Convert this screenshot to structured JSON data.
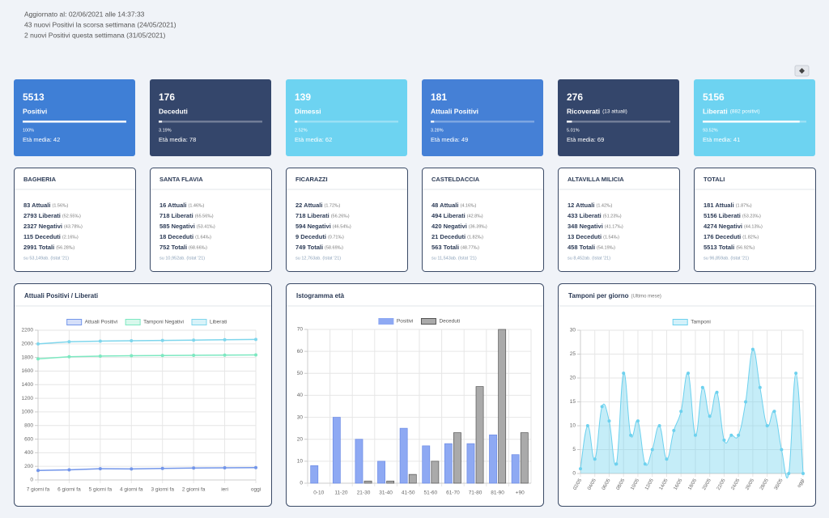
{
  "header": {
    "lines": [
      "Aggiornato al: 02/06/2021 alle 14:37:33",
      "43 nuovi Positivi la scorsa settimana (24/05/2021)",
      "2 nuovi Positivi questa settimana (31/05/2021)"
    ]
  },
  "cards": [
    {
      "value": 5513,
      "label": "Positivi",
      "percent": 100,
      "percent_label": "100%",
      "age": "Età media: 42",
      "color": "#3f7fd6"
    },
    {
      "value": 176,
      "label": "Deceduti",
      "percent": 3.19,
      "percent_label": "3.19%",
      "age": "Età media: 78",
      "color": "#34466b"
    },
    {
      "value": 139,
      "label": "Dimessi",
      "percent": 2.52,
      "percent_label": "2.52%",
      "age": "Età media: 62",
      "color": "#6dd3f1"
    },
    {
      "value": 181,
      "label": "Attuali Positivi",
      "percent": 3.28,
      "percent_label": "3.28%",
      "age": "Età media: 49",
      "color": "#4580d6"
    },
    {
      "value": 276,
      "label": "Ricoverati",
      "note": "(13 attuali)",
      "percent": 5.01,
      "percent_label": "5.01%",
      "age": "Età media: 69",
      "color": "#34466b"
    },
    {
      "value": 5156,
      "label": "Liberati",
      "note": "(882 positivi)",
      "percent": 93.52,
      "percent_label": "93.52%",
      "age": "Età media: 41",
      "color": "#6dd3f1"
    }
  ],
  "towns": [
    {
      "name": "BAGHERIA",
      "rows": [
        {
          "count": "83 Attuali",
          "ratio": "(1.56‰)"
        },
        {
          "count": "2793 Liberati",
          "ratio": "(52.55‰)"
        },
        {
          "count": "2327 Negativi",
          "ratio": "(43.78‰)"
        },
        {
          "count": "115 Deceduti",
          "ratio": "(2.16‰)"
        },
        {
          "count": "2991 Totali",
          "ratio": "(56.28‰)"
        }
      ],
      "footer": "su 53,149ab. (Istat '21)"
    },
    {
      "name": "SANTA FLAVIA",
      "rows": [
        {
          "count": "16 Attuali",
          "ratio": "(1.46‰)"
        },
        {
          "count": "718 Liberati",
          "ratio": "(65.56‰)"
        },
        {
          "count": "585 Negativi",
          "ratio": "(53.41‰)"
        },
        {
          "count": "18 Deceduti",
          "ratio": "(1.64‰)"
        },
        {
          "count": "752 Totali",
          "ratio": "(68.66‰)"
        }
      ],
      "footer": "su 10,952ab. (Istat '21)"
    },
    {
      "name": "FICARAZZI",
      "rows": [
        {
          "count": "22 Attuali",
          "ratio": "(1.72‰)"
        },
        {
          "count": "718 Liberati",
          "ratio": "(56.26‰)"
        },
        {
          "count": "594 Negativi",
          "ratio": "(46.54‰)"
        },
        {
          "count": "9 Deceduti",
          "ratio": "(0.71‰)"
        },
        {
          "count": "749 Totali",
          "ratio": "(58.69‰)"
        }
      ],
      "footer": "su 12,763ab. (Istat '21)"
    },
    {
      "name": "CASTELDACCIA",
      "rows": [
        {
          "count": "48 Attuali",
          "ratio": "(4.16‰)"
        },
        {
          "count": "494 Liberati",
          "ratio": "(42.8‰)"
        },
        {
          "count": "420 Negativi",
          "ratio": "(36.39‰)"
        },
        {
          "count": "21 Deceduti",
          "ratio": "(1.82‰)"
        },
        {
          "count": "563 Totali",
          "ratio": "(48.77‰)"
        }
      ],
      "footer": "su 11,543ab. (Istat '21)"
    },
    {
      "name": "ALTAVILLA MILICIA",
      "rows": [
        {
          "count": "12 Attuali",
          "ratio": "(1.42‰)"
        },
        {
          "count": "433 Liberati",
          "ratio": "(51.23‰)"
        },
        {
          "count": "348 Negativi",
          "ratio": "(41.17‰)"
        },
        {
          "count": "13 Deceduti",
          "ratio": "(1.54‰)"
        },
        {
          "count": "458 Totali",
          "ratio": "(54.19‰)"
        }
      ],
      "footer": "su 8,452ab. (Istat '21)"
    },
    {
      "name": "TOTALI",
      "rows": [
        {
          "count": "181 Attuali",
          "ratio": "(1.87‰)"
        },
        {
          "count": "5156 Liberati",
          "ratio": "(53.23‰)"
        },
        {
          "count": "4274 Negativi",
          "ratio": "(44.13‰)"
        },
        {
          "count": "176 Deceduti",
          "ratio": "(1.82‰)"
        },
        {
          "count": "5513 Totali",
          "ratio": "(56.92‰)"
        }
      ],
      "footer": "su 96,859ab. (Istat '21)"
    }
  ],
  "chart_data": [
    {
      "type": "line",
      "title": "Attuali Positivi / Liberati",
      "categories": [
        "7 giorni fa",
        "6 giorni fa",
        "5 giorni fa",
        "4 giorni fa",
        "3 giorni fa",
        "2 giorni fa",
        "ieri",
        "oggi"
      ],
      "series": [
        {
          "name": "Attuali Positivi",
          "color": "#7396ea",
          "values": [
            140,
            148,
            165,
            162,
            170,
            175,
            178,
            181
          ]
        },
        {
          "name": "Tamponi Negativi",
          "color": "#7de8c1",
          "values": [
            1780,
            1810,
            1820,
            1825,
            1828,
            1832,
            1835,
            1838
          ]
        },
        {
          "name": "Liberati",
          "color": "#7fd6ec",
          "values": [
            2000,
            2030,
            2040,
            2045,
            2050,
            2055,
            2060,
            2065
          ]
        }
      ],
      "ylim": [
        0,
        2200
      ],
      "yticks": [
        0,
        200,
        400,
        600,
        800,
        1000,
        1200,
        1400,
        1600,
        1800,
        2000,
        2200
      ],
      "grid": true,
      "legend": "top"
    },
    {
      "type": "bar",
      "title": "Istogramma età",
      "categories": [
        "0-10",
        "11-20",
        "21-30",
        "31-40",
        "41-50",
        "51-60",
        "61-70",
        "71-80",
        "81-90",
        "+90"
      ],
      "series": [
        {
          "name": "Positivi",
          "color": "#8ea9f3",
          "values": [
            8,
            30,
            20,
            10,
            25,
            17,
            18,
            18,
            22,
            13
          ]
        },
        {
          "name": "Deceduti",
          "color": "#aaaaaa",
          "values": [
            0,
            0,
            1,
            1,
            4,
            10,
            23,
            44,
            70,
            23
          ]
        }
      ],
      "ylim": [
        0,
        70
      ],
      "yticks": [
        0,
        10,
        20,
        30,
        40,
        50,
        60,
        70
      ],
      "grid": true,
      "legend": "top"
    },
    {
      "type": "area",
      "title": "Tamponi per giorno",
      "subtitle": "(Ultimo mese)",
      "categories": [
        "02/05",
        null,
        "04/05",
        null,
        "06/05",
        null,
        "08/05",
        null,
        "10/05",
        null,
        "12/05",
        null,
        "14/05",
        null,
        "16/05",
        null,
        "18/05",
        null,
        "20/05",
        null,
        "22/05",
        null,
        "24/05",
        null,
        "26/05",
        null,
        "28/05",
        null,
        "30/05",
        null,
        null,
        "oggi"
      ],
      "series": [
        {
          "name": "Tamponi",
          "color": "#6dd1ee",
          "values": [
            1,
            10,
            3,
            14,
            11,
            2,
            21,
            8,
            11,
            2,
            5,
            10,
            3,
            9,
            13,
            21,
            8,
            18,
            12,
            17,
            7,
            8,
            8,
            15,
            26,
            18,
            10,
            13,
            5,
            0,
            21,
            0
          ]
        }
      ],
      "ylim": [
        0,
        30
      ],
      "yticks": [
        0,
        5,
        10,
        15,
        20,
        25,
        30
      ],
      "grid": true,
      "legend": "top"
    }
  ]
}
